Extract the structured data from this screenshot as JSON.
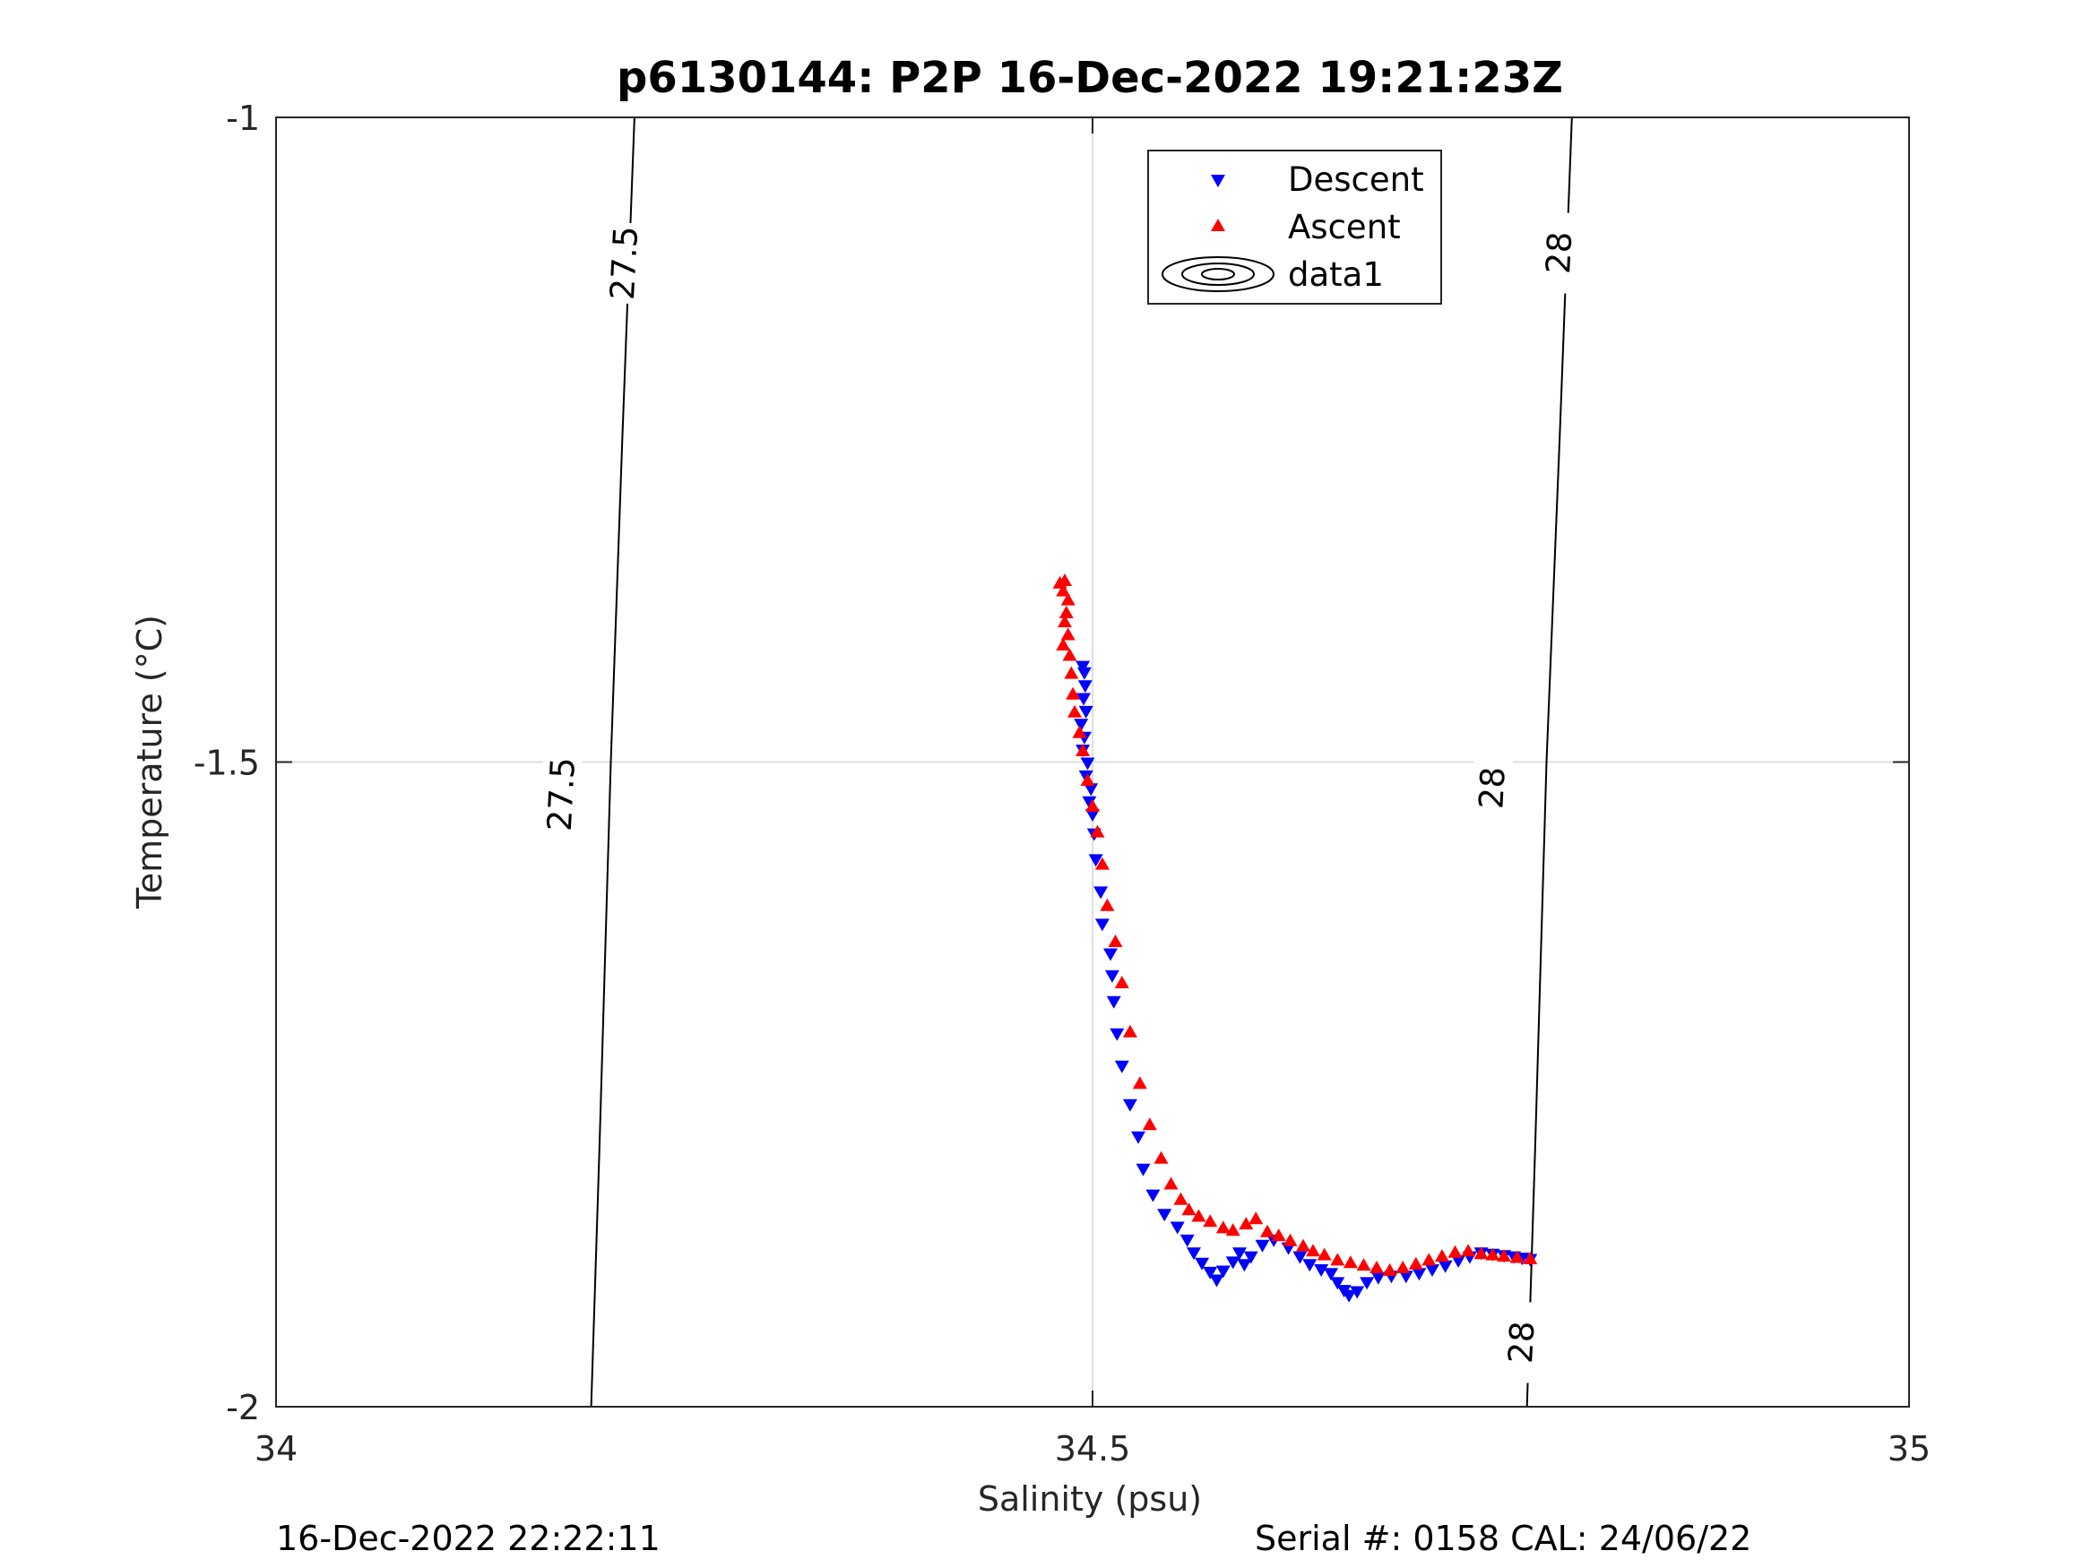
{
  "chart_data": {
    "type": "scatter",
    "title": "p6130144: P2P 16-Dec-2022 19:21:23Z",
    "xlabel": "Salinity (psu)",
    "ylabel": "Temperature (°C)",
    "xlim": [
      34,
      35
    ],
    "ylim": [
      -2,
      -1
    ],
    "xticks": [
      "34",
      "34.5",
      "35"
    ],
    "yticks": [
      "-1",
      "-1.5",
      "-2"
    ],
    "grid": true,
    "legend_position": "top-center",
    "legend": [
      {
        "label": "Descent",
        "marker": "triangle-down",
        "color": "#0000ff"
      },
      {
        "label": "Ascent",
        "marker": "triangle-up",
        "color": "#ff0000"
      },
      {
        "label": "data1",
        "marker": "contour",
        "color": "#000000"
      }
    ],
    "contours": [
      {
        "level": 27.5,
        "label": "27.5",
        "points": [
          [
            34.193,
            -2.0
          ],
          [
            34.198,
            -1.8
          ],
          [
            34.205,
            -1.5
          ],
          [
            34.212,
            -1.25
          ],
          [
            34.2195,
            -1.0
          ]
        ]
      },
      {
        "level": 28,
        "label": "28",
        "points": [
          [
            34.766,
            -2.0
          ],
          [
            34.771,
            -1.8
          ],
          [
            34.778,
            -1.5
          ],
          [
            34.786,
            -1.25
          ],
          [
            34.7935,
            -1.0
          ]
        ]
      }
    ],
    "contour_labels": [
      {
        "text": "27.5",
        "x": 34.213,
        "y": -1.113
      },
      {
        "text": "27.5",
        "x": 34.1745,
        "y": -1.525
      },
      {
        "text": "28",
        "x": 34.7855,
        "y": -1.105
      },
      {
        "text": "28",
        "x": 34.7445,
        "y": -1.52
      },
      {
        "text": "28",
        "x": 34.7625,
        "y": -1.95
      }
    ],
    "series": [
      {
        "name": "Descent",
        "marker": "triangle-down",
        "color": "#0000ff",
        "points": [
          [
            34.494,
            -1.425
          ],
          [
            34.495,
            -1.43
          ],
          [
            34.4955,
            -1.44
          ],
          [
            34.4945,
            -1.45
          ],
          [
            34.496,
            -1.46
          ],
          [
            34.493,
            -1.47
          ],
          [
            34.495,
            -1.48
          ],
          [
            34.494,
            -1.49
          ],
          [
            34.497,
            -1.5
          ],
          [
            34.496,
            -1.51
          ],
          [
            34.499,
            -1.52
          ],
          [
            34.498,
            -1.53
          ],
          [
            34.5,
            -1.54
          ],
          [
            34.501,
            -1.555
          ],
          [
            34.502,
            -1.575
          ],
          [
            34.505,
            -1.6
          ],
          [
            34.506,
            -1.625
          ],
          [
            34.511,
            -1.648
          ],
          [
            34.512,
            -1.665
          ],
          [
            34.513,
            -1.685
          ],
          [
            34.515,
            -1.71
          ],
          [
            34.518,
            -1.735
          ],
          [
            34.523,
            -1.765
          ],
          [
            34.528,
            -1.79
          ],
          [
            34.531,
            -1.815
          ],
          [
            34.537,
            -1.835
          ],
          [
            34.544,
            -1.85
          ],
          [
            34.552,
            -1.86
          ],
          [
            34.558,
            -1.87
          ],
          [
            34.562,
            -1.88
          ],
          [
            34.567,
            -1.888
          ],
          [
            34.572,
            -1.895
          ],
          [
            34.576,
            -1.901
          ],
          [
            34.58,
            -1.894
          ],
          [
            34.586,
            -1.887
          ],
          [
            34.59,
            -1.88
          ],
          [
            34.593,
            -1.889
          ],
          [
            34.597,
            -1.883
          ],
          [
            34.604,
            -1.874
          ],
          [
            34.611,
            -1.87
          ],
          [
            34.62,
            -1.876
          ],
          [
            34.627,
            -1.883
          ],
          [
            34.633,
            -1.889
          ],
          [
            34.64,
            -1.893
          ],
          [
            34.646,
            -1.896
          ],
          [
            34.65,
            -1.903
          ],
          [
            34.654,
            -1.909
          ],
          [
            34.657,
            -1.913
          ],
          [
            34.662,
            -1.91
          ],
          [
            34.668,
            -1.903
          ],
          [
            34.675,
            -1.899
          ],
          [
            34.683,
            -1.898
          ],
          [
            34.692,
            -1.898
          ],
          [
            34.7,
            -1.896
          ],
          [
            34.708,
            -1.893
          ],
          [
            34.716,
            -1.89
          ],
          [
            34.724,
            -1.886
          ],
          [
            34.731,
            -1.883
          ],
          [
            34.738,
            -1.88
          ],
          [
            34.745,
            -1.881
          ],
          [
            34.752,
            -1.882
          ],
          [
            34.758,
            -1.883
          ],
          [
            34.763,
            -1.884
          ],
          [
            34.768,
            -1.885
          ]
        ]
      },
      {
        "name": "Ascent",
        "marker": "triangle-up",
        "color": "#ff0000",
        "points": [
          [
            34.48,
            -1.362
          ],
          [
            34.483,
            -1.36
          ],
          [
            34.482,
            -1.368
          ],
          [
            34.485,
            -1.375
          ],
          [
            34.484,
            -1.385
          ],
          [
            34.483,
            -1.392
          ],
          [
            34.485,
            -1.402
          ],
          [
            34.482,
            -1.41
          ],
          [
            34.486,
            -1.418
          ],
          [
            34.487,
            -1.432
          ],
          [
            34.488,
            -1.448
          ],
          [
            34.489,
            -1.462
          ],
          [
            34.492,
            -1.478
          ],
          [
            34.494,
            -1.492
          ],
          [
            34.497,
            -1.515
          ],
          [
            34.5,
            -1.535
          ],
          [
            34.503,
            -1.555
          ],
          [
            34.506,
            -1.58
          ],
          [
            34.509,
            -1.612
          ],
          [
            34.514,
            -1.64
          ],
          [
            34.518,
            -1.672
          ],
          [
            34.523,
            -1.71
          ],
          [
            34.529,
            -1.75
          ],
          [
            34.535,
            -1.782
          ],
          [
            34.542,
            -1.808
          ],
          [
            34.548,
            -1.828
          ],
          [
            34.554,
            -1.84
          ],
          [
            34.559,
            -1.848
          ],
          [
            34.565,
            -1.853
          ],
          [
            34.572,
            -1.857
          ],
          [
            34.58,
            -1.862
          ],
          [
            34.586,
            -1.864
          ],
          [
            34.594,
            -1.859
          ],
          [
            34.6,
            -1.855
          ],
          [
            34.607,
            -1.865
          ],
          [
            34.614,
            -1.868
          ],
          [
            34.621,
            -1.872
          ],
          [
            34.629,
            -1.876
          ],
          [
            34.635,
            -1.88
          ],
          [
            34.642,
            -1.883
          ],
          [
            34.65,
            -1.887
          ],
          [
            34.658,
            -1.889
          ],
          [
            34.666,
            -1.891
          ],
          [
            34.674,
            -1.893
          ],
          [
            34.682,
            -1.895
          ],
          [
            34.69,
            -1.893
          ],
          [
            34.698,
            -1.89
          ],
          [
            34.706,
            -1.887
          ],
          [
            34.714,
            -1.884
          ],
          [
            34.722,
            -1.881
          ],
          [
            34.73,
            -1.88
          ],
          [
            34.738,
            -1.882
          ],
          [
            34.745,
            -1.883
          ],
          [
            34.752,
            -1.884
          ],
          [
            34.76,
            -1.885
          ],
          [
            34.768,
            -1.886
          ]
        ]
      }
    ]
  },
  "footer": {
    "left": "16-Dec-2022 22:22:11",
    "right": "Serial #: 0158  CAL: 24/06/22"
  }
}
